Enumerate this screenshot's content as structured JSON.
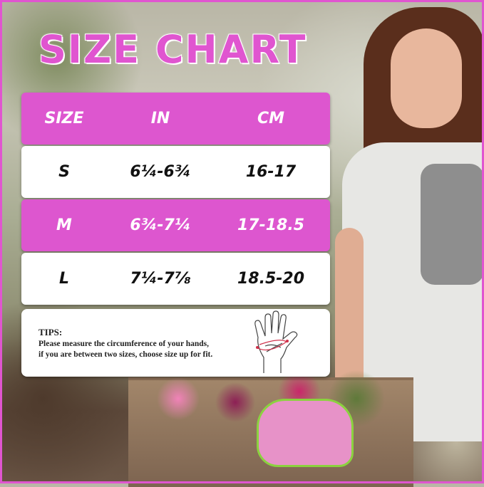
{
  "title": "SIZE CHART",
  "table": {
    "headers": [
      "SIZE",
      "IN",
      "CM"
    ],
    "rows": [
      {
        "size": "S",
        "in": "6¼-6¾",
        "cm": "16-17"
      },
      {
        "size": "M",
        "in": "6¾-7¼",
        "cm": "17-18.5"
      },
      {
        "size": "L",
        "in": "7¼-7⅞",
        "cm": "18.5-20"
      }
    ]
  },
  "tips": {
    "title": "TIPS:",
    "line1": "Please measure the circumference of your hands,",
    "line2": "if you are between two sizes, choose size up for fit."
  },
  "colors": {
    "accent": "#dd56cf",
    "frame": "#e055d0"
  }
}
